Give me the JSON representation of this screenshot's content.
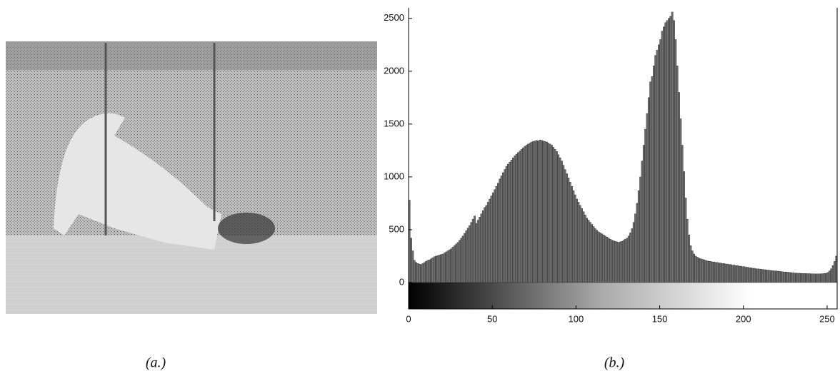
{
  "captions": [
    "(a.)",
    "(b.)"
  ],
  "chart_data": {
    "type": "histogram",
    "bins": [
      0,
      1,
      2,
      3,
      4,
      5,
      6,
      7,
      8,
      9,
      10,
      11,
      12,
      13,
      14,
      15,
      16,
      17,
      18,
      19,
      20,
      21,
      22,
      23,
      24,
      25,
      26,
      27,
      28,
      29,
      30,
      31,
      32,
      33,
      34,
      35,
      36,
      37,
      38,
      39,
      40,
      41,
      42,
      43,
      44,
      45,
      46,
      47,
      48,
      49,
      50,
      51,
      52,
      53,
      54,
      55,
      56,
      57,
      58,
      59,
      60,
      61,
      62,
      63,
      64,
      65,
      66,
      67,
      68,
      69,
      70,
      71,
      72,
      73,
      74,
      75,
      76,
      77,
      78,
      79,
      80,
      81,
      82,
      83,
      84,
      85,
      86,
      87,
      88,
      89,
      90,
      91,
      92,
      93,
      94,
      95,
      96,
      97,
      98,
      99,
      100,
      101,
      102,
      103,
      104,
      105,
      106,
      107,
      108,
      109,
      110,
      111,
      112,
      113,
      114,
      115,
      116,
      117,
      118,
      119,
      120,
      121,
      122,
      123,
      124,
      125,
      126,
      127,
      128,
      129,
      130,
      131,
      132,
      133,
      134,
      135,
      136,
      137,
      138,
      139,
      140,
      141,
      142,
      143,
      144,
      145,
      146,
      147,
      148,
      149,
      150,
      151,
      152,
      153,
      154,
      155,
      156,
      157,
      158,
      159,
      160,
      161,
      162,
      163,
      164,
      165,
      166,
      167,
      168,
      169,
      170,
      171,
      172,
      173,
      174,
      175,
      176,
      177,
      178,
      179,
      180,
      181,
      182,
      183,
      184,
      185,
      186,
      187,
      188,
      189,
      190,
      191,
      192,
      193,
      194,
      195,
      196,
      197,
      198,
      199,
      200,
      201,
      202,
      203,
      204,
      205,
      206,
      207,
      208,
      209,
      210,
      211,
      212,
      213,
      214,
      215,
      216,
      217,
      218,
      219,
      220,
      221,
      222,
      223,
      224,
      225,
      226,
      227,
      228,
      229,
      230,
      231,
      232,
      233,
      234,
      235,
      236,
      237,
      238,
      239,
      240,
      241,
      242,
      243,
      244,
      245,
      246,
      247,
      248,
      249,
      250,
      251,
      252,
      253,
      254,
      255,
      256
    ],
    "values": [
      780,
      420,
      300,
      210,
      190,
      180,
      175,
      170,
      180,
      190,
      200,
      210,
      215,
      225,
      235,
      245,
      250,
      255,
      260,
      265,
      270,
      280,
      290,
      300,
      310,
      320,
      335,
      350,
      365,
      380,
      400,
      420,
      440,
      465,
      490,
      515,
      540,
      570,
      600,
      630,
      560,
      590,
      620,
      650,
      680,
      710,
      730,
      760,
      790,
      820,
      850,
      880,
      910,
      940,
      980,
      1010,
      1040,
      1070,
      1100,
      1120,
      1140,
      1160,
      1180,
      1200,
      1215,
      1230,
      1245,
      1260,
      1275,
      1290,
      1300,
      1310,
      1320,
      1330,
      1335,
      1340,
      1345,
      1340,
      1350,
      1345,
      1340,
      1335,
      1330,
      1320,
      1310,
      1300,
      1280,
      1260,
      1240,
      1210,
      1180,
      1150,
      1110,
      1070,
      1030,
      990,
      950,
      910,
      870,
      830,
      790,
      760,
      730,
      700,
      670,
      640,
      610,
      590,
      570,
      550,
      530,
      510,
      495,
      480,
      470,
      460,
      450,
      440,
      430,
      420,
      410,
      400,
      395,
      390,
      385,
      380,
      385,
      390,
      400,
      410,
      420,
      440,
      470,
      510,
      570,
      650,
      750,
      870,
      1000,
      1150,
      1300,
      1450,
      1600,
      1750,
      1900,
      1950,
      2050,
      2150,
      2200,
      2250,
      2300,
      2380,
      2420,
      2460,
      2480,
      2500,
      2520,
      2560,
      2480,
      2300,
      2050,
      1800,
      1550,
      1300,
      1050,
      800,
      600,
      450,
      350,
      300,
      270,
      250,
      240,
      230,
      225,
      220,
      215,
      210,
      205,
      200,
      200,
      195,
      195,
      190,
      190,
      185,
      185,
      180,
      180,
      175,
      175,
      170,
      170,
      165,
      165,
      160,
      160,
      155,
      155,
      150,
      150,
      145,
      145,
      140,
      140,
      135,
      135,
      130,
      130,
      128,
      126,
      124,
      122,
      120,
      118,
      116,
      114,
      112,
      110,
      110,
      108,
      106,
      104,
      102,
      100,
      100,
      98,
      96,
      94,
      92,
      90,
      90,
      88,
      88,
      86,
      86,
      85,
      85,
      84,
      84,
      83,
      83,
      82,
      82,
      82,
      82,
      83,
      84,
      86,
      88,
      95,
      110,
      130,
      160,
      200,
      250
    ],
    "color": "#6e6e6e",
    "xlim": [
      0,
      256
    ],
    "ylim": [
      -250,
      2600
    ],
    "xticks": [
      0,
      50,
      100,
      150,
      200,
      250
    ],
    "yticks": [
      0,
      500,
      1000,
      1500,
      2000,
      2500
    ]
  }
}
